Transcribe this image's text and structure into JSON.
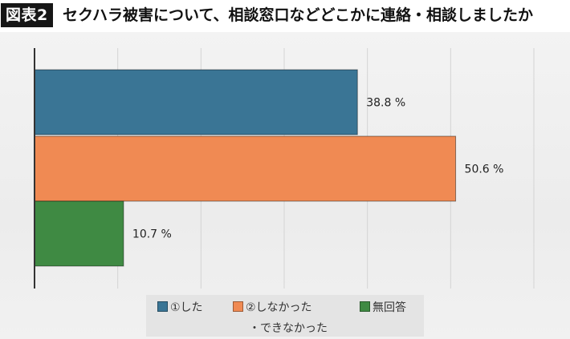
{
  "header": {
    "badge": "図表2",
    "title": "セクハラ被害について、相談窓口などどこかに連絡・相談しましたか"
  },
  "chart_data": {
    "type": "bar",
    "orientation": "horizontal",
    "categories": [
      "①した",
      "②しなかった・できなかった",
      "無回答"
    ],
    "values": [
      38.8,
      50.6,
      10.7
    ],
    "value_labels": [
      "38.8 %",
      "50.6 %",
      "10.7 %"
    ],
    "colors": [
      "#3a7595",
      "#f08a53",
      "#3f8a43"
    ],
    "xlim": [
      0,
      60
    ],
    "grid": true,
    "legend_position": "bottom",
    "legend": [
      {
        "label": "①した",
        "color": "#3a7595"
      },
      {
        "label": "②しなかった",
        "color": "#f08a53"
      },
      {
        "label": "無回答",
        "color": "#3f8a43"
      }
    ],
    "legend_continuation": "・できなかった"
  }
}
